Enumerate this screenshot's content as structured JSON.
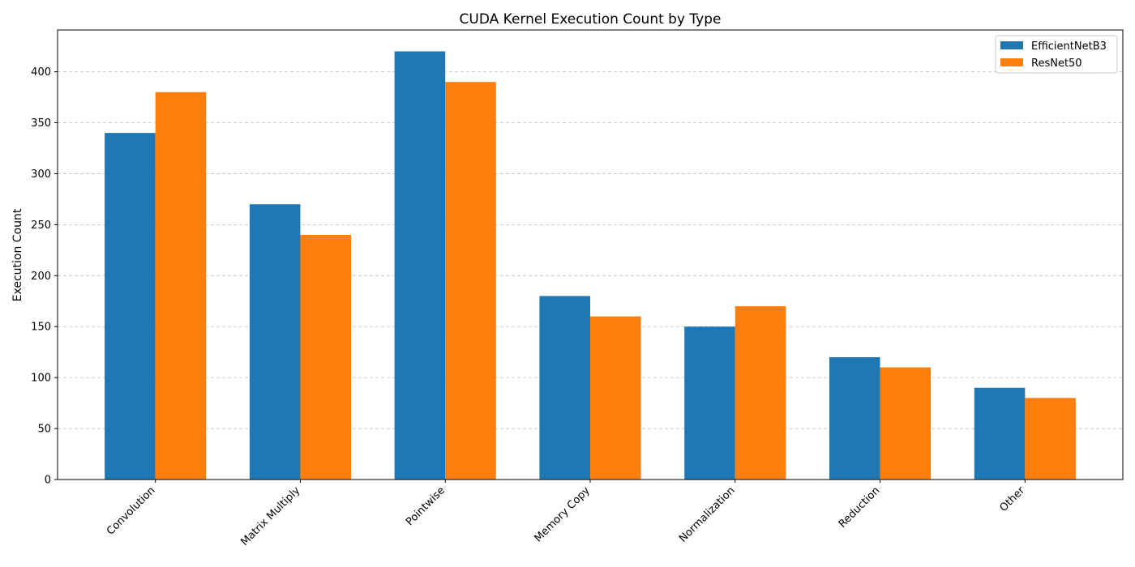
{
  "chart_data": {
    "type": "bar",
    "title": "CUDA Kernel Execution Count by Type",
    "xlabel": "",
    "ylabel": "Execution Count",
    "categories": [
      "Convolution",
      "Matrix Multiply",
      "Pointwise",
      "Memory Copy",
      "Normalization",
      "Reduction",
      "Other"
    ],
    "series": [
      {
        "name": "EfficientNetB3",
        "color": "#1f77b4",
        "values": [
          340,
          270,
          420,
          180,
          150,
          120,
          90
        ]
      },
      {
        "name": "ResNet50",
        "color": "#ff7f0e",
        "values": [
          380,
          240,
          390,
          160,
          170,
          110,
          80
        ]
      }
    ],
    "ylim": [
      0,
      441
    ],
    "yticks": [
      0,
      50,
      100,
      150,
      200,
      250,
      300,
      350,
      400
    ],
    "grid": "y, dashed",
    "legend_position": "top-right",
    "xtick_rotation": 45
  }
}
